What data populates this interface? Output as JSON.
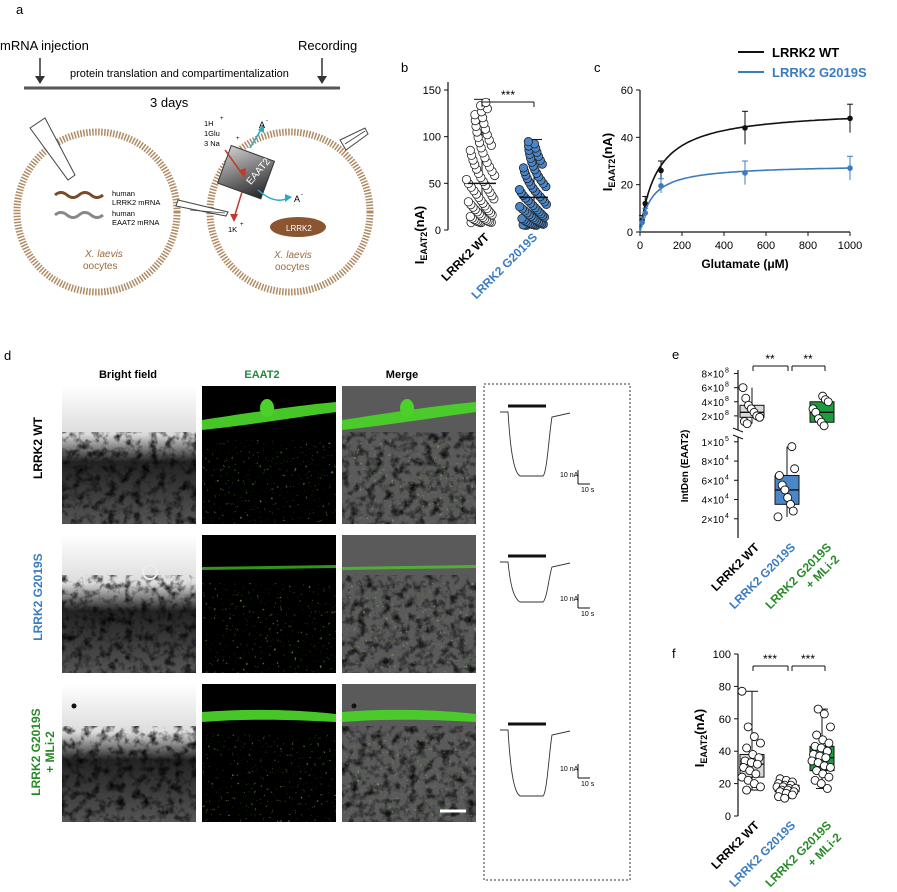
{
  "colors": {
    "wt": "#111111",
    "mut": "#3b7cc0",
    "mli": "#2a8a2a",
    "ring": "#b08a63",
    "bar_mut": "#4a86c8",
    "bar_mli": "#1f9a3e",
    "fluor": "#4bd12a"
  },
  "panel_a": {
    "letter": "a",
    "mrna_injection": "mRNA injection",
    "recording": "Recording",
    "translation": "protein translation and compartimentalization",
    "days": "3 days",
    "legend_human1": "human",
    "legend_lrrk2": "LRRK2 mRNA",
    "legend_human2": "human",
    "legend_eaat2": "EAAT2 mRNA",
    "species": "X. laevis",
    "oocytes": "oocytes",
    "species2": "X. laevis",
    "oocytes2": "oocytes",
    "ion_1h": "1H",
    "ion_1glu": "1Glu",
    "ion_3na": "3 Na",
    "ion_1k": "1K",
    "a_minus_top": "A",
    "a_minus_right": "A",
    "transporter": "EAAT2",
    "lrrk2_blob": "LRRK2"
  },
  "panel_b": {
    "letter": "b",
    "ylabel_main": "I",
    "ylabel_sub": "EAAT2",
    "ylabel_unit": "(nA)",
    "sig": "***",
    "yticks": [
      "0",
      "50",
      "100",
      "150"
    ],
    "cat1": "LRRK2 WT",
    "cat2": "LRRK2 G2019S"
  },
  "panel_c": {
    "letter": "c",
    "legend_wt": "LRRK2 WT",
    "legend_mut": "LRRK2 G2019S",
    "ylabel_main": "I",
    "ylabel_sub": "EAAT2",
    "ylabel_unit": "(nA)",
    "xlabel": "Glutamate (μM)",
    "yticks": [
      "0",
      "20",
      "40",
      "60"
    ],
    "xticks": [
      "0",
      "200",
      "400",
      "600",
      "800",
      "1000"
    ]
  },
  "panel_d": {
    "letter": "d",
    "col1": "Bright field",
    "col2": "EAAT2",
    "col3": "Merge",
    "row1": "LRRK2 WT",
    "row2": "LRRK2 G2019S",
    "row3a": "LRRK2 G2019S",
    "row3b": "+ MLi-2",
    "scale_na": "10 nA",
    "scale_s": "10 s",
    "scale_na2": "10 nA",
    "scale_s2": "10 s",
    "scale_na3": "10 nA",
    "scale_s3": "10 s"
  },
  "panel_e": {
    "letter": "e",
    "sig1": "**",
    "sig2": "**",
    "ylabel": "IntDen (EAAT2)",
    "yticks_top": [
      "8×10",
      "6×10",
      "4×10",
      "2×10"
    ],
    "yticks_top_exp": "8",
    "yticks_bottom": [
      "1×10",
      "8×10",
      "6×10",
      "4×10",
      "2×10"
    ],
    "yticks_bottom_exp": [
      "5",
      "4",
      "4",
      "4",
      "4"
    ],
    "cat1": "LRRK2 WT",
    "cat2": "LRRK2 G2019S",
    "cat3a": "LRRK2 G2019S",
    "cat3b": "+ MLi-2"
  },
  "panel_f": {
    "letter": "f",
    "sig1": "***",
    "sig2": "***",
    "ylabel_main": "I",
    "ylabel_sub": "EAAT2",
    "ylabel_unit": "(nA)",
    "yticks": [
      "0",
      "20",
      "40",
      "60",
      "80",
      "100"
    ],
    "cat1": "LRRK2 WT",
    "cat2": "LRRK2 G2019S",
    "cat3a": "LRRK2 G2019S",
    "cat3b": "+ MLi-2"
  },
  "chart_data": [
    {
      "type": "scatter",
      "panel": "b",
      "ylabel": "IEAAT2(nA)",
      "ylim": [
        0,
        150
      ],
      "categories": [
        "LRRK2 WT",
        "LRRK2 G2019S"
      ],
      "series": [
        {
          "name": "LRRK2 WT",
          "median": 50,
          "q1": 30,
          "q3": 65,
          "min": 8,
          "max": 140
        },
        {
          "name": "LRRK2 G2019S",
          "median": 35,
          "q1": 20,
          "q3": 45,
          "min": 5,
          "max": 97
        }
      ]
    },
    {
      "type": "line",
      "panel": "c",
      "xlabel": "Glutamate (μM)",
      "ylabel": "IEAAT2(nA)",
      "xlim": [
        0,
        1000
      ],
      "ylim": [
        0,
        60
      ],
      "x": [
        10,
        25,
        100,
        500,
        1000
      ],
      "series": [
        {
          "name": "LRRK2 WT",
          "values": [
            5,
            12,
            26,
            44,
            48
          ],
          "err": [
            2,
            3,
            4,
            7,
            6
          ]
        },
        {
          "name": "LRRK2 G2019S",
          "values": [
            4,
            8,
            19.5,
            25,
            27
          ],
          "err": [
            2,
            2,
            3,
            5,
            5
          ]
        }
      ]
    },
    {
      "type": "scatter",
      "panel": "e",
      "ylabel": "IntDen (EAAT2)",
      "categories": [
        "LRRK2 WT",
        "LRRK2 G2019S",
        "LRRK2 G2019S + MLi-2"
      ],
      "series": [
        {
          "name": "LRRK2 WT",
          "values": [
            600000000,
            450000000,
            350000000,
            300000000,
            250000000,
            200000000,
            180000000,
            120000000,
            90000000
          ]
        },
        {
          "name": "LRRK2 G2019S",
          "values": [
            95000,
            72000,
            65000,
            55000,
            50000,
            42000,
            35000,
            28000,
            22000
          ]
        },
        {
          "name": "LRRK2 G2019S + MLi-2",
          "values": [
            480000000,
            430000000,
            400000000,
            300000000,
            250000000,
            160000000,
            110000000,
            60000000
          ]
        }
      ]
    },
    {
      "type": "scatter",
      "panel": "f",
      "ylabel": "IEAAT2(nA)",
      "ylim": [
        0,
        100
      ],
      "categories": [
        "LRRK2 WT",
        "LRRK2 G2019S",
        "LRRK2 G2019S + MLi-2"
      ],
      "series": [
        {
          "name": "LRRK2 WT",
          "values": [
            77,
            55,
            49,
            45,
            42,
            38,
            36,
            34,
            33,
            32,
            30,
            28,
            26,
            24,
            22,
            20,
            18,
            16
          ]
        },
        {
          "name": "LRRK2 G2019S",
          "values": [
            23,
            22,
            21,
            20,
            19,
            19,
            18,
            18,
            17,
            17,
            16,
            16,
            15,
            15,
            14,
            13,
            12,
            11
          ]
        },
        {
          "name": "LRRK2 G2019S + MLi-2",
          "values": [
            66,
            63,
            55,
            50,
            47,
            45,
            43,
            42,
            40,
            38,
            37,
            36,
            34,
            33,
            31,
            30,
            28,
            26,
            24,
            22,
            20,
            17
          ]
        }
      ]
    }
  ]
}
